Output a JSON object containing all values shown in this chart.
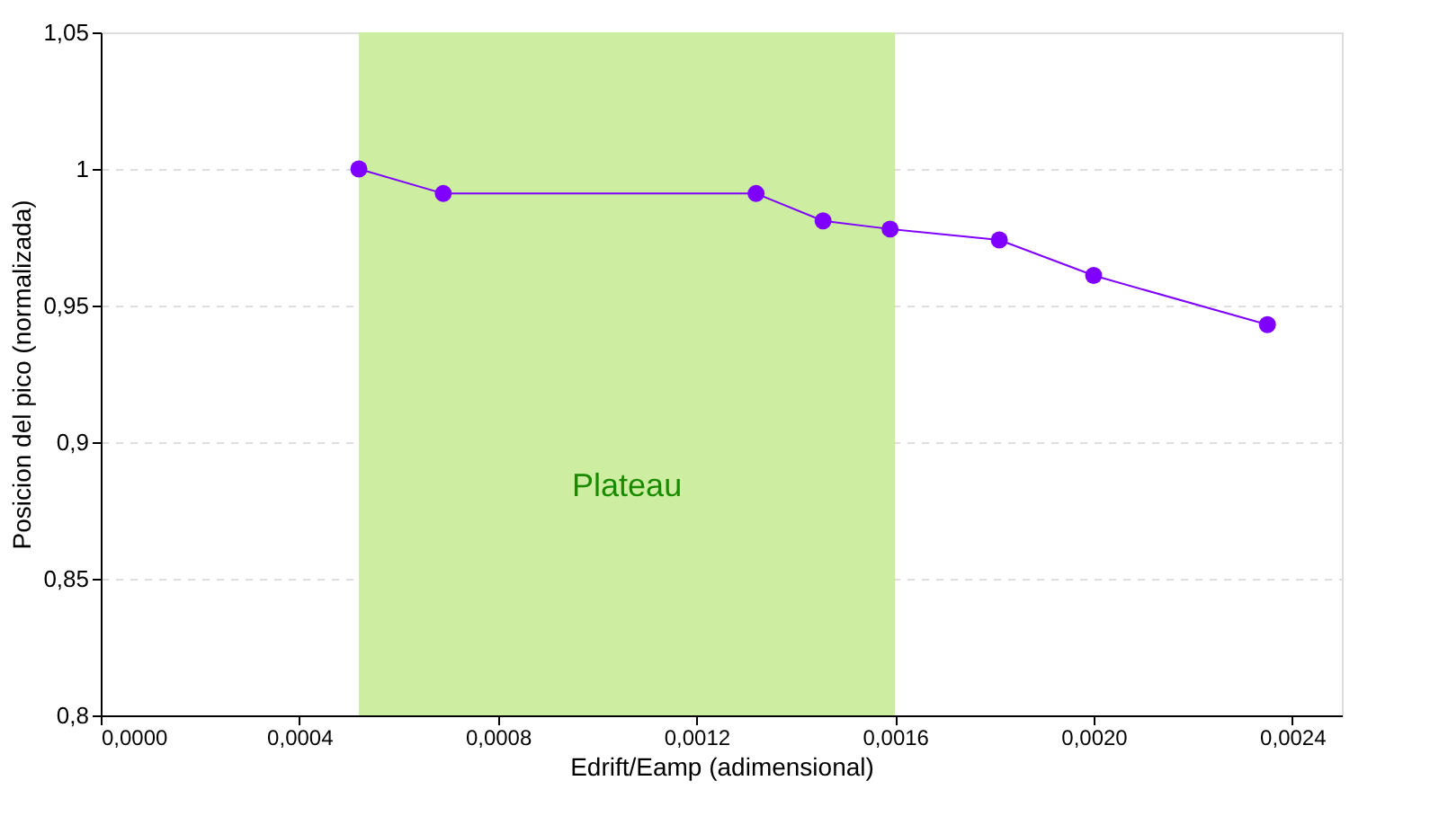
{
  "chart_data": {
    "type": "line",
    "xlabel": "Edrift/Eamp (adimensional)",
    "ylabel": "Posicion del pico (normalizada)",
    "x": [
      0.00052,
      0.00069,
      0.00132,
      0.001455,
      0.00159,
      0.00181,
      0.002,
      0.00235
    ],
    "series": [
      {
        "color": "#7f00ff",
        "values": [
          1.0,
          0.991,
          0.991,
          0.981,
          0.978,
          0.974,
          0.961,
          0.943
        ]
      }
    ],
    "marker": "circle",
    "line_style": "solid",
    "grid": "y",
    "xlim": [
      0,
      0.0025
    ],
    "ylim": [
      0.8,
      1.05
    ],
    "xticks": [
      {
        "value": 0,
        "label": "0,0000"
      },
      {
        "value": 0.0004,
        "label": "0,0004"
      },
      {
        "value": 0.0008,
        "label": "0,0008"
      },
      {
        "value": 0.0012,
        "label": "0,0012"
      },
      {
        "value": 0.0016,
        "label": "0,0016"
      },
      {
        "value": 0.002,
        "label": "0,0020"
      },
      {
        "value": 0.0024,
        "label": "0,0024"
      }
    ],
    "yticks": [
      {
        "value": 0.8,
        "label": "0,8"
      },
      {
        "value": 0.85,
        "label": "0,85"
      },
      {
        "value": 0.9,
        "label": "0,9"
      },
      {
        "value": 0.95,
        "label": "0,95"
      },
      {
        "value": 1,
        "label": "1"
      },
      {
        "value": 1.05,
        "label": "1,05"
      }
    ],
    "bands": [
      {
        "axis": "x",
        "from": 0.00052,
        "to": 0.0016,
        "label": "Plateau",
        "color": "#cdeda0"
      }
    ]
  }
}
